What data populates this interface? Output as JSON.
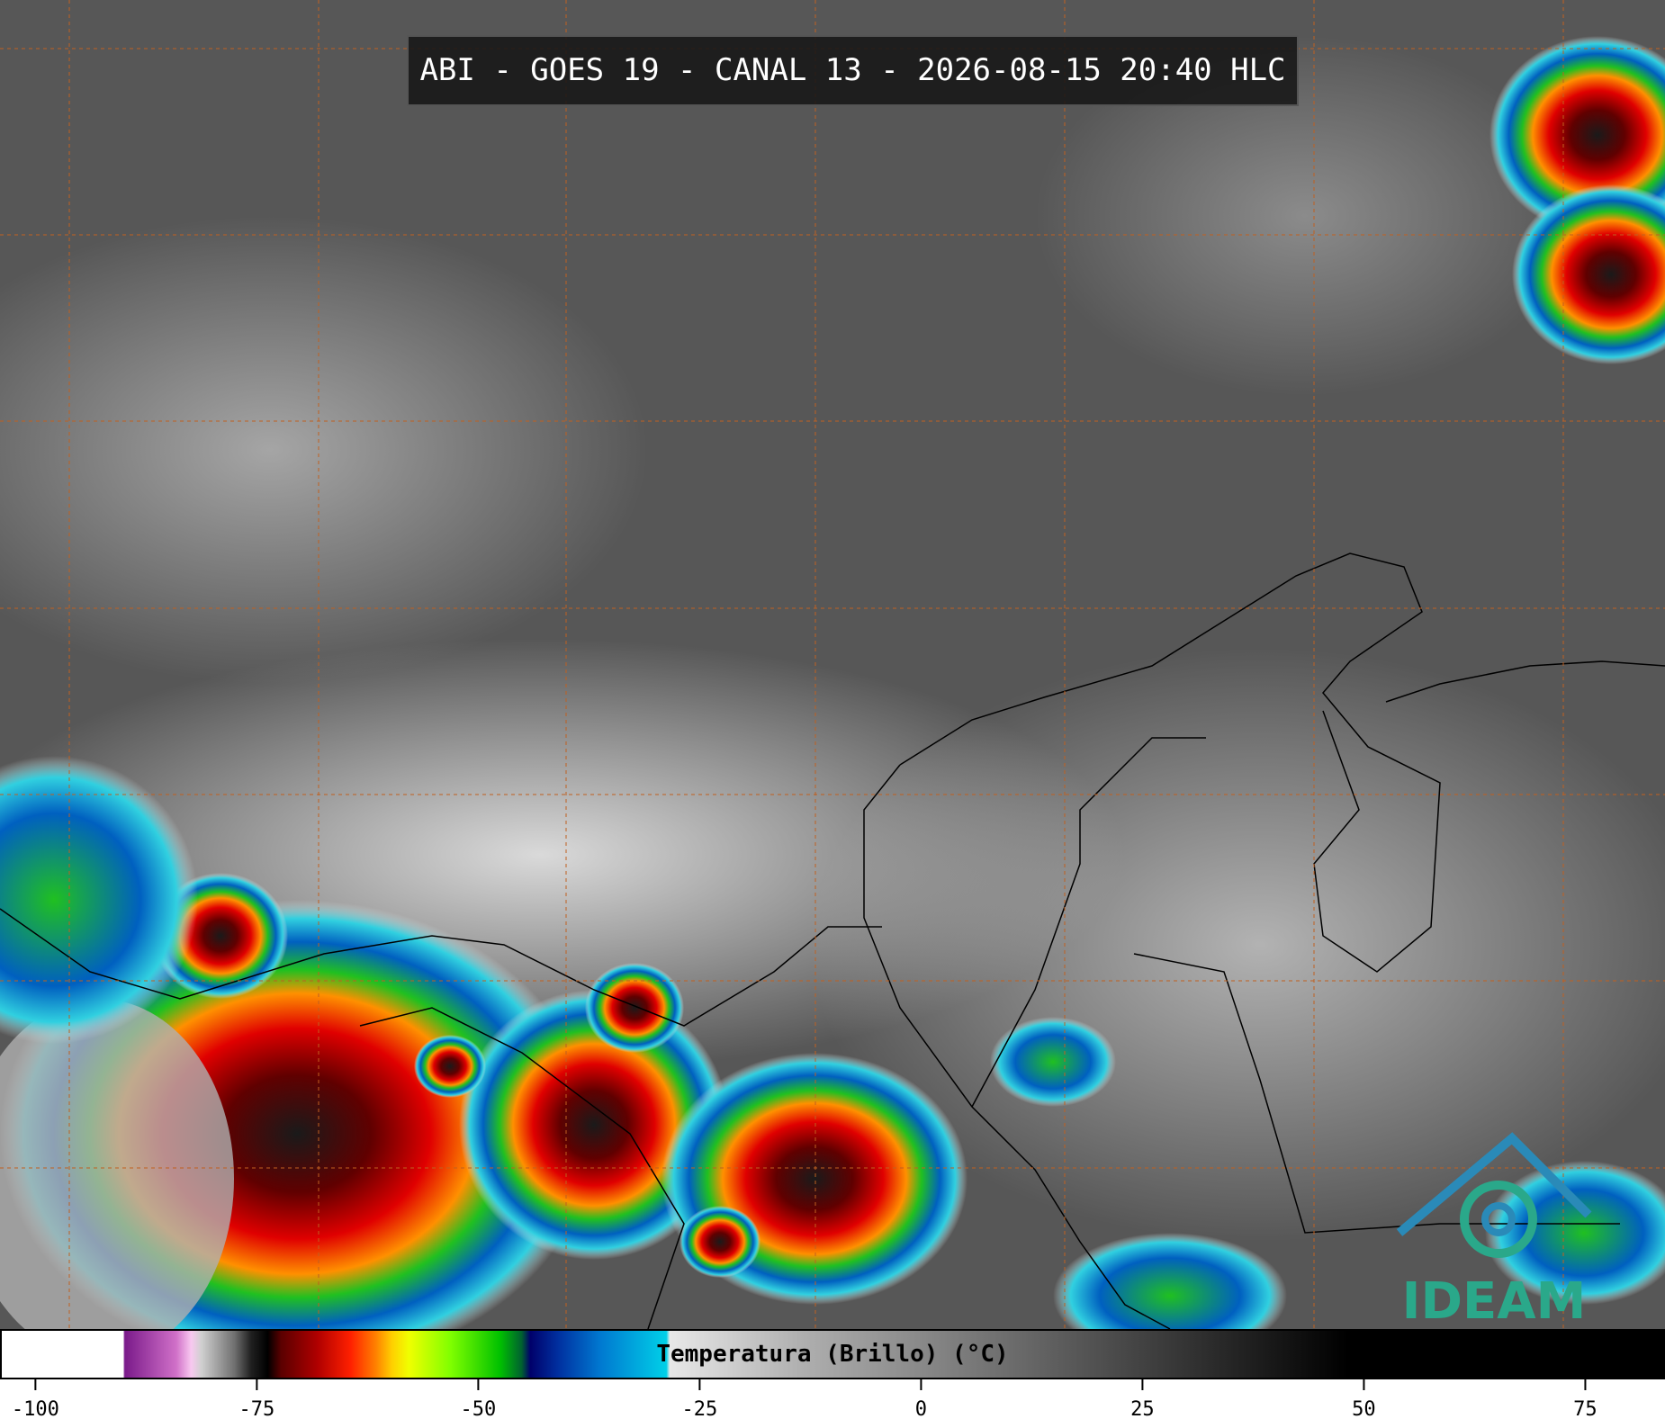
{
  "title": "ABI - GOES 19 - CANAL 13 - 2026-08-15 20:40 HLC",
  "logo": {
    "text": "IDEAM"
  },
  "colorbar": {
    "label": "Temperatura (Brillo) (°C)",
    "range": [
      -104,
      84
    ],
    "ticks": [
      -100,
      -75,
      -50,
      -25,
      0,
      25,
      50,
      75
    ]
  }
}
